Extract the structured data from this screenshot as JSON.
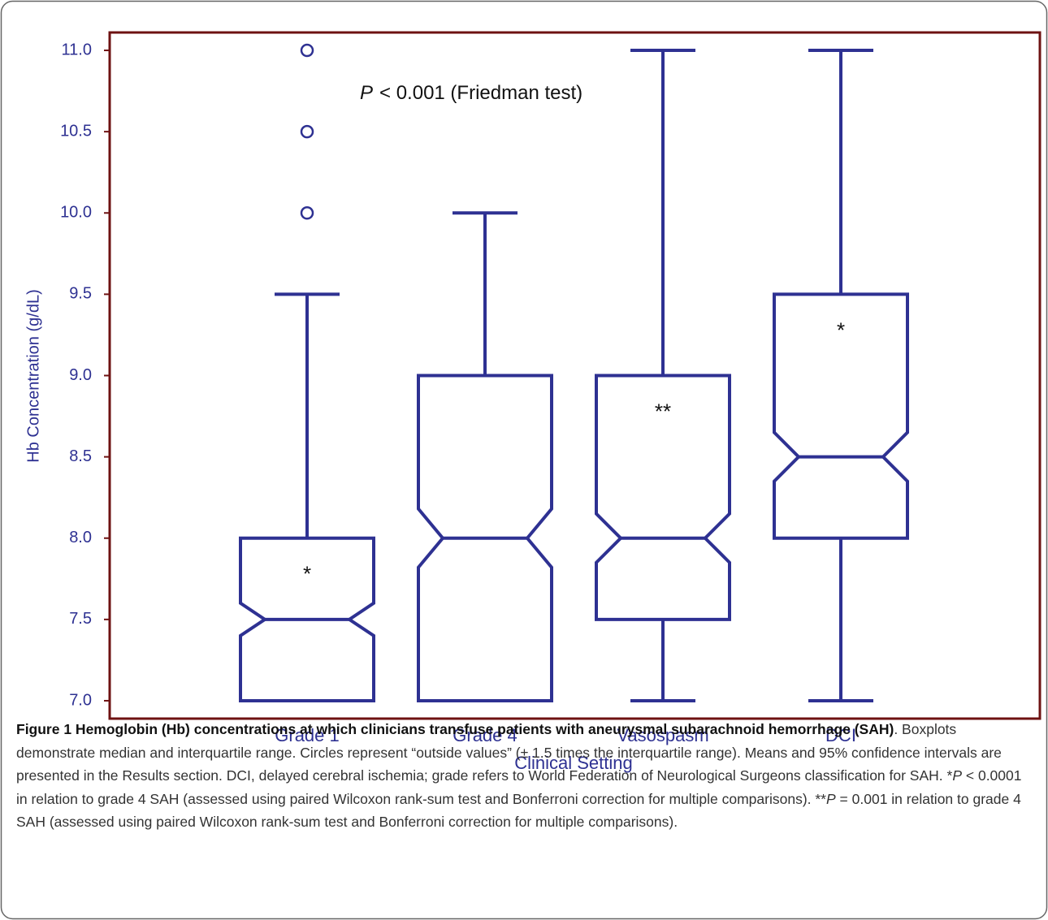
{
  "chart_data": {
    "type": "boxplot",
    "annotation": {
      "italic": "P",
      "text": "< 0.001 (Friedman test)"
    },
    "x_label": "Clinical Setting",
    "y_label": "Hb Concentration (g/dL)",
    "categories": [
      "Grade 1",
      "Grade 4",
      "Vasospasm",
      "DCI"
    ],
    "color": "#2e3192",
    "frame_color": "#6e1212",
    "boxes": [
      {
        "min": 7.0,
        "q1": 7.0,
        "notch_low": 7.4,
        "median": 7.5,
        "notch_high": 7.6,
        "q3": 8.0,
        "max": 9.5,
        "outliers": [
          10.0,
          10.5,
          11.0
        ],
        "marker": "*"
      },
      {
        "min": 7.0,
        "q1": 7.0,
        "notch_low": 7.82,
        "median": 8.0,
        "notch_high": 8.18,
        "q3": 9.0,
        "max": 10.0,
        "outliers": []
      },
      {
        "min": 7.0,
        "q1": 7.5,
        "notch_low": 7.85,
        "median": 8.0,
        "notch_high": 8.15,
        "q3": 9.0,
        "max": 11.0,
        "outliers": [],
        "marker": "**"
      },
      {
        "min": 7.0,
        "q1": 8.0,
        "notch_low": 8.35,
        "median": 8.5,
        "notch_high": 8.65,
        "q3": 9.5,
        "max": 11.0,
        "outliers": [],
        "marker": "*"
      }
    ],
    "ylim": [
      6.89,
      11.11
    ],
    "yticks": [
      {
        "value": 7.0,
        "label": "7.0"
      },
      {
        "value": 7.5,
        "label": "7.5"
      },
      {
        "value": 8.0,
        "label": "8.0"
      },
      {
        "value": 8.5,
        "label": "8.5"
      },
      {
        "value": 9.0,
        "label": "9.0"
      },
      {
        "value": 9.5,
        "label": "9.5"
      },
      {
        "value": 10.0,
        "label": "10.0"
      },
      {
        "value": 10.5,
        "label": "10.5"
      },
      {
        "value": 11.0,
        "label": "11.0"
      }
    ]
  },
  "caption": [
    {
      "style": "bold",
      "text": "Figure 1 Hemoglobin (Hb) concentrations at which clinicians transfuse patients with aneurysmal subarachnoid hemorrhage (SAH)"
    },
    {
      "style": "normal",
      "text": ". Boxplots demonstrate median and interquartile range. Circles represent “outside values” (± 1.5 times the interquartile range). Means and 95% confidence intervals are presented in the Results section. DCI, delayed cerebral ischemia; grade refers to World Federation of Neurological Surgeons classification for SAH. *"
    },
    {
      "style": "italic",
      "text": "P"
    },
    {
      "style": "normal",
      "text": " < 0.0001 in relation to grade 4 SAH (assessed using paired Wilcoxon rank-sum test and Bonferroni correction for multiple comparisons). **"
    },
    {
      "style": "italic",
      "text": "P"
    },
    {
      "style": "normal",
      "text": " = 0.001 in relation to grade 4 SAH (assessed using paired Wilcoxon rank-sum test and Bonferroni correction for multiple comparisons)."
    }
  ]
}
